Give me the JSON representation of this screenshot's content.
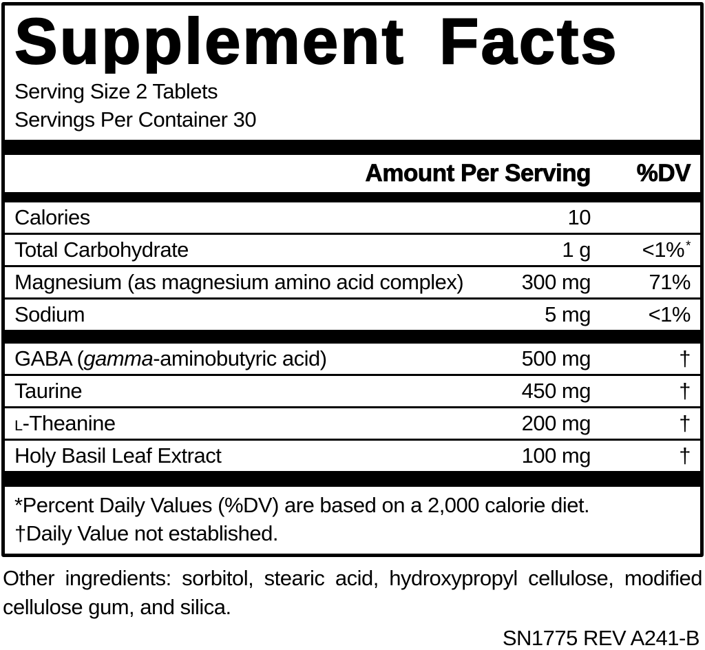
{
  "title": "Supplement Facts",
  "serving": {
    "size": "Serving Size 2 Tablets",
    "per_container": "Servings Per Container 30"
  },
  "columns": {
    "amount": "Amount Per Serving",
    "dv": "%DV"
  },
  "rows_main": [
    {
      "name": "Calories",
      "amount": "10",
      "dv": ""
    },
    {
      "name": "Total Carbohydrate",
      "amount": "1 g",
      "dv": "<1%",
      "dv_note": "*"
    },
    {
      "name": "Magnesium (as magnesium amino acid complex)",
      "amount": "300 mg",
      "dv": "71%"
    },
    {
      "name": "Sodium",
      "amount": "5 mg",
      "dv": "<1%"
    }
  ],
  "rows_other": [
    {
      "name_prefix": "GABA (",
      "name_italic": "gamma",
      "name_suffix": "-aminobutyric acid)",
      "amount": "500 mg",
      "dv": "†"
    },
    {
      "name": "Taurine",
      "amount": "450 mg",
      "dv": "†"
    },
    {
      "name_smallcap": "L",
      "name_rest": "-Theanine",
      "amount": "200 mg",
      "dv": "†"
    },
    {
      "name": "Holy Basil Leaf Extract",
      "amount": "100 mg",
      "dv": "†"
    }
  ],
  "footnotes": [
    "*Percent Daily Values (%DV) are based on a 2,000 calorie diet.",
    "†Daily Value not established."
  ],
  "other_ingredients": "Other ingredients: sorbitol, stearic acid, hydroxypropyl cellulose, modified cellulose gum, and silica.",
  "product_code": "SN1775 REV A241-B",
  "colors": {
    "text": "#000000",
    "background": "#ffffff",
    "bar": "#000000"
  }
}
